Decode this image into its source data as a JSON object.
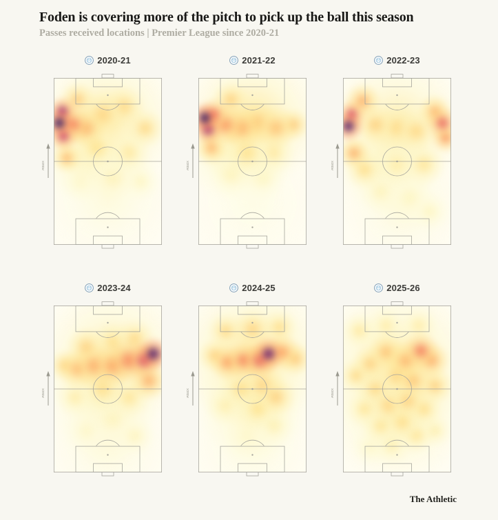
{
  "page": {
    "title": "Foden is covering more of the pitch to pick up the ball this season",
    "subtitle": "Passes received locations | Premier League since 2020-21",
    "footer_logo": "The Athletic",
    "background": "#f8f7f1"
  },
  "pitch": {
    "line_color": "#a6a59d",
    "attack_label": "Attack",
    "badge": "manchester-city-crest",
    "badge_colors": {
      "ring": "#ffffff",
      "border": "#7d9cb5",
      "center": "#b3d3e6"
    }
  },
  "chart_data": {
    "type": "heatmap",
    "title": "Foden is covering more of the pitch to pick up the ball this season",
    "subtitle": "Passes received locations | Premier League since 2020-21",
    "layout": "small-multiples, 2 rows x 3 columns, vertical pitches attacking upward",
    "units": "hotspot x,y = percent of pitch from left/top (top = attacking goal line); r = radius as percent of pitch length; v = relative pass-received density 0-1",
    "colormap": {
      "name": "magma_r (white-yellow-orange-red-purple)",
      "stops": [
        [
          0,
          "#fffef2"
        ],
        [
          0.1,
          "#fdf6c4"
        ],
        [
          0.22,
          "#fee391"
        ],
        [
          0.35,
          "#fdc778"
        ],
        [
          0.48,
          "#fca062"
        ],
        [
          0.6,
          "#f06e5a"
        ],
        [
          0.7,
          "#d44866"
        ],
        [
          0.8,
          "#a02c6e"
        ],
        [
          0.9,
          "#60186e"
        ],
        [
          1,
          "#2d115f"
        ]
      ]
    },
    "panels": [
      {
        "season": "2020-21",
        "peak_zone": "left wing, attacking third",
        "hotspots": [
          {
            "x": 50,
            "y": 25,
            "r": 42,
            "v": 0.16
          },
          {
            "x": 30,
            "y": 45,
            "r": 30,
            "v": 0.12
          },
          {
            "x": 50,
            "y": 72,
            "r": 38,
            "v": 0.05
          },
          {
            "x": 45,
            "y": 22,
            "r": 14,
            "v": 0.28
          },
          {
            "x": 65,
            "y": 17,
            "r": 13,
            "v": 0.26
          },
          {
            "x": 85,
            "y": 30,
            "r": 12,
            "v": 0.26
          },
          {
            "x": 22,
            "y": 13,
            "r": 11,
            "v": 0.32
          },
          {
            "x": 40,
            "y": 42,
            "r": 13,
            "v": 0.22
          },
          {
            "x": 70,
            "y": 45,
            "r": 13,
            "v": 0.18
          },
          {
            "x": 55,
            "y": 60,
            "r": 14,
            "v": 0.13
          },
          {
            "x": 25,
            "y": 62,
            "r": 12,
            "v": 0.1
          },
          {
            "x": 80,
            "y": 62,
            "r": 12,
            "v": 0.1
          },
          {
            "x": 30,
            "y": 30,
            "r": 12,
            "v": 0.42
          },
          {
            "x": 12,
            "y": 48,
            "r": 9,
            "v": 0.38
          },
          {
            "x": 18,
            "y": 28,
            "r": 11,
            "v": 0.55
          },
          {
            "x": 9,
            "y": 35,
            "r": 9,
            "v": 0.72
          },
          {
            "x": 8,
            "y": 20,
            "r": 9,
            "v": 0.8
          },
          {
            "x": 5,
            "y": 27,
            "r": 9,
            "v": 1.0
          }
        ]
      },
      {
        "season": "2021-22",
        "peak_zone": "left wing, attacking third",
        "hotspots": [
          {
            "x": 50,
            "y": 25,
            "r": 42,
            "v": 0.18
          },
          {
            "x": 30,
            "y": 45,
            "r": 30,
            "v": 0.1
          },
          {
            "x": 50,
            "y": 75,
            "r": 38,
            "v": 0.03
          },
          {
            "x": 30,
            "y": 13,
            "r": 11,
            "v": 0.3
          },
          {
            "x": 55,
            "y": 27,
            "r": 13,
            "v": 0.36
          },
          {
            "x": 72,
            "y": 30,
            "r": 13,
            "v": 0.36
          },
          {
            "x": 88,
            "y": 28,
            "r": 10,
            "v": 0.34
          },
          {
            "x": 40,
            "y": 30,
            "r": 13,
            "v": 0.42
          },
          {
            "x": 25,
            "y": 28,
            "r": 12,
            "v": 0.5
          },
          {
            "x": 12,
            "y": 42,
            "r": 10,
            "v": 0.4
          },
          {
            "x": 45,
            "y": 45,
            "r": 14,
            "v": 0.22
          },
          {
            "x": 70,
            "y": 45,
            "r": 13,
            "v": 0.18
          },
          {
            "x": 30,
            "y": 58,
            "r": 13,
            "v": 0.12
          },
          {
            "x": 60,
            "y": 60,
            "r": 14,
            "v": 0.1
          },
          {
            "x": 14,
            "y": 22,
            "r": 10,
            "v": 0.6
          },
          {
            "x": 9,
            "y": 31,
            "r": 9,
            "v": 0.8
          },
          {
            "x": 6,
            "y": 24,
            "r": 9,
            "v": 1.0
          }
        ]
      },
      {
        "season": "2022-23",
        "peak_zone": "left wing attacking third, secondary right wing",
        "hotspots": [
          {
            "x": 50,
            "y": 28,
            "r": 42,
            "v": 0.15
          },
          {
            "x": 40,
            "y": 50,
            "r": 32,
            "v": 0.1
          },
          {
            "x": 55,
            "y": 75,
            "r": 36,
            "v": 0.06
          },
          {
            "x": 18,
            "y": 14,
            "r": 11,
            "v": 0.42
          },
          {
            "x": 30,
            "y": 28,
            "r": 12,
            "v": 0.3
          },
          {
            "x": 50,
            "y": 30,
            "r": 13,
            "v": 0.26
          },
          {
            "x": 68,
            "y": 32,
            "r": 13,
            "v": 0.26
          },
          {
            "x": 85,
            "y": 20,
            "r": 10,
            "v": 0.4
          },
          {
            "x": 95,
            "y": 36,
            "r": 9,
            "v": 0.5
          },
          {
            "x": 92,
            "y": 27,
            "r": 10,
            "v": 0.62
          },
          {
            "x": 10,
            "y": 45,
            "r": 10,
            "v": 0.42
          },
          {
            "x": 20,
            "y": 55,
            "r": 12,
            "v": 0.24
          },
          {
            "x": 75,
            "y": 52,
            "r": 13,
            "v": 0.2
          },
          {
            "x": 50,
            "y": 52,
            "r": 14,
            "v": 0.16
          },
          {
            "x": 35,
            "y": 68,
            "r": 13,
            "v": 0.12
          },
          {
            "x": 62,
            "y": 72,
            "r": 14,
            "v": 0.1
          },
          {
            "x": 80,
            "y": 80,
            "r": 12,
            "v": 0.1
          },
          {
            "x": 8,
            "y": 22,
            "r": 9,
            "v": 0.7
          },
          {
            "x": 5,
            "y": 29,
            "r": 9,
            "v": 0.95
          }
        ]
      },
      {
        "season": "2023-24",
        "peak_zone": "right wing, edge of attacking third; band across width",
        "hotspots": [
          {
            "x": 55,
            "y": 32,
            "r": 45,
            "v": 0.15
          },
          {
            "x": 45,
            "y": 58,
            "r": 35,
            "v": 0.08
          },
          {
            "x": 50,
            "y": 82,
            "r": 35,
            "v": 0.06
          },
          {
            "x": 30,
            "y": 25,
            "r": 12,
            "v": 0.3
          },
          {
            "x": 55,
            "y": 22,
            "r": 12,
            "v": 0.24
          },
          {
            "x": 75,
            "y": 20,
            "r": 12,
            "v": 0.26
          },
          {
            "x": 10,
            "y": 36,
            "r": 10,
            "v": 0.3
          },
          {
            "x": 22,
            "y": 38,
            "r": 12,
            "v": 0.4
          },
          {
            "x": 38,
            "y": 36,
            "r": 13,
            "v": 0.45
          },
          {
            "x": 55,
            "y": 36,
            "r": 13,
            "v": 0.48
          },
          {
            "x": 70,
            "y": 33,
            "r": 13,
            "v": 0.55
          },
          {
            "x": 88,
            "y": 45,
            "r": 12,
            "v": 0.42
          },
          {
            "x": 45,
            "y": 50,
            "r": 14,
            "v": 0.24
          },
          {
            "x": 70,
            "y": 55,
            "r": 13,
            "v": 0.2
          },
          {
            "x": 20,
            "y": 55,
            "r": 12,
            "v": 0.16
          },
          {
            "x": 55,
            "y": 68,
            "r": 14,
            "v": 0.12
          },
          {
            "x": 30,
            "y": 75,
            "r": 13,
            "v": 0.09
          },
          {
            "x": 75,
            "y": 78,
            "r": 12,
            "v": 0.11
          },
          {
            "x": 84,
            "y": 33,
            "r": 11,
            "v": 0.7
          },
          {
            "x": 92,
            "y": 29,
            "r": 10,
            "v": 0.95
          }
        ]
      },
      {
        "season": "2024-25",
        "peak_zone": "right half-space outside the box",
        "hotspots": [
          {
            "x": 50,
            "y": 30,
            "r": 45,
            "v": 0.18
          },
          {
            "x": 50,
            "y": 58,
            "r": 35,
            "v": 0.12
          },
          {
            "x": 50,
            "y": 82,
            "r": 35,
            "v": 0.05
          },
          {
            "x": 25,
            "y": 15,
            "r": 11,
            "v": 0.26
          },
          {
            "x": 50,
            "y": 14,
            "r": 12,
            "v": 0.28
          },
          {
            "x": 75,
            "y": 13,
            "r": 11,
            "v": 0.24
          },
          {
            "x": 15,
            "y": 30,
            "r": 10,
            "v": 0.3
          },
          {
            "x": 27,
            "y": 34,
            "r": 11,
            "v": 0.48
          },
          {
            "x": 42,
            "y": 33,
            "r": 11,
            "v": 0.55
          },
          {
            "x": 57,
            "y": 33,
            "r": 11,
            "v": 0.65
          },
          {
            "x": 78,
            "y": 28,
            "r": 11,
            "v": 0.45
          },
          {
            "x": 90,
            "y": 32,
            "r": 10,
            "v": 0.35
          },
          {
            "x": 60,
            "y": 48,
            "r": 13,
            "v": 0.3
          },
          {
            "x": 72,
            "y": 55,
            "r": 12,
            "v": 0.3
          },
          {
            "x": 40,
            "y": 50,
            "r": 13,
            "v": 0.24
          },
          {
            "x": 55,
            "y": 62,
            "r": 13,
            "v": 0.22
          },
          {
            "x": 25,
            "y": 60,
            "r": 12,
            "v": 0.16
          },
          {
            "x": 70,
            "y": 72,
            "r": 12,
            "v": 0.14
          },
          {
            "x": 45,
            "y": 78,
            "r": 13,
            "v": 0.1
          },
          {
            "x": 65,
            "y": 29,
            "r": 10,
            "v": 0.9
          }
        ]
      },
      {
        "season": "2025-26",
        "peak_zone": "spread across whole pitch, mild peak right half-space",
        "hotspots": [
          {
            "x": 50,
            "y": 35,
            "r": 48,
            "v": 0.16
          },
          {
            "x": 50,
            "y": 65,
            "r": 42,
            "v": 0.12
          },
          {
            "x": 15,
            "y": 15,
            "r": 11,
            "v": 0.18
          },
          {
            "x": 40,
            "y": 12,
            "r": 11,
            "v": 0.16
          },
          {
            "x": 70,
            "y": 12,
            "r": 11,
            "v": 0.16
          },
          {
            "x": 40,
            "y": 28,
            "r": 11,
            "v": 0.36
          },
          {
            "x": 25,
            "y": 35,
            "r": 11,
            "v": 0.3
          },
          {
            "x": 12,
            "y": 42,
            "r": 10,
            "v": 0.26
          },
          {
            "x": 58,
            "y": 33,
            "r": 12,
            "v": 0.4
          },
          {
            "x": 82,
            "y": 33,
            "r": 11,
            "v": 0.44
          },
          {
            "x": 72,
            "y": 27,
            "r": 11,
            "v": 0.56
          },
          {
            "x": 50,
            "y": 42,
            "r": 12,
            "v": 0.3
          },
          {
            "x": 65,
            "y": 45,
            "r": 12,
            "v": 0.34
          },
          {
            "x": 85,
            "y": 48,
            "r": 11,
            "v": 0.3
          },
          {
            "x": 30,
            "y": 50,
            "r": 12,
            "v": 0.26
          },
          {
            "x": 60,
            "y": 57,
            "r": 12,
            "v": 0.3
          },
          {
            "x": 42,
            "y": 60,
            "r": 12,
            "v": 0.28
          },
          {
            "x": 75,
            "y": 62,
            "r": 11,
            "v": 0.24
          },
          {
            "x": 20,
            "y": 62,
            "r": 11,
            "v": 0.2
          },
          {
            "x": 55,
            "y": 70,
            "r": 12,
            "v": 0.24
          },
          {
            "x": 35,
            "y": 72,
            "r": 11,
            "v": 0.2
          },
          {
            "x": 68,
            "y": 78,
            "r": 11,
            "v": 0.2
          },
          {
            "x": 85,
            "y": 75,
            "r": 10,
            "v": 0.15
          },
          {
            "x": 45,
            "y": 84,
            "r": 12,
            "v": 0.14
          },
          {
            "x": 25,
            "y": 85,
            "r": 11,
            "v": 0.1
          }
        ]
      }
    ]
  }
}
